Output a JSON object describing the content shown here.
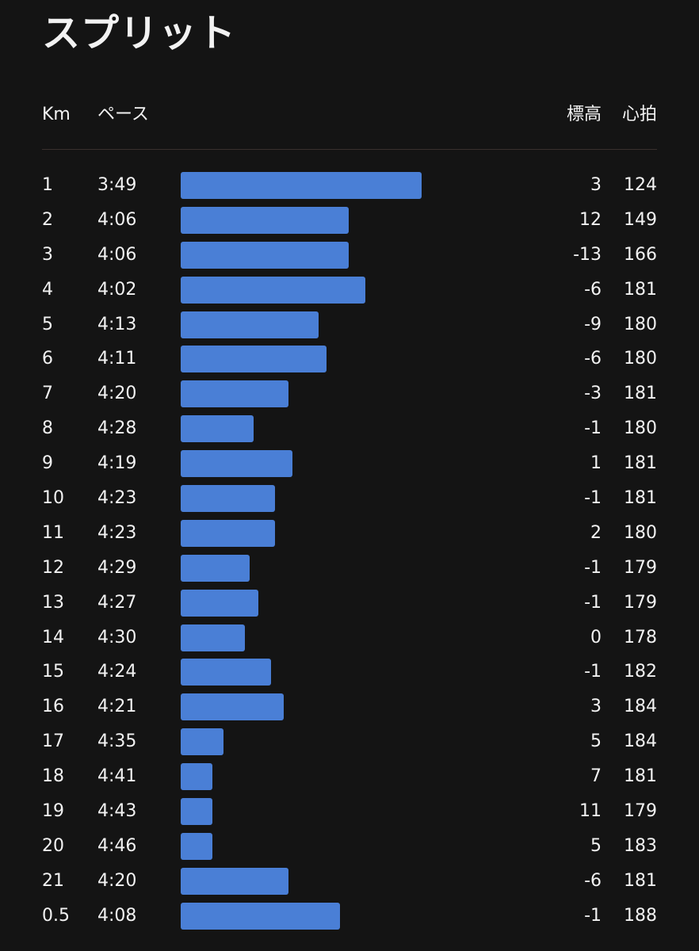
{
  "title": "スプリット",
  "columns": {
    "km": "Km",
    "pace": "ペース",
    "elevation": "標高",
    "heart_rate": "心拍"
  },
  "colors": {
    "background": "#141414",
    "bar": "#4a7fd6",
    "text": "#f2f2f2"
  },
  "splits": [
    {
      "km": "1",
      "pace": "3:49",
      "elevation": "3",
      "heart_rate": "124"
    },
    {
      "km": "2",
      "pace": "4:06",
      "elevation": "12",
      "heart_rate": "149"
    },
    {
      "km": "3",
      "pace": "4:06",
      "elevation": "-13",
      "heart_rate": "166"
    },
    {
      "km": "4",
      "pace": "4:02",
      "elevation": "-6",
      "heart_rate": "181"
    },
    {
      "km": "5",
      "pace": "4:13",
      "elevation": "-9",
      "heart_rate": "180"
    },
    {
      "km": "6",
      "pace": "4:11",
      "elevation": "-6",
      "heart_rate": "180"
    },
    {
      "km": "7",
      "pace": "4:20",
      "elevation": "-3",
      "heart_rate": "181"
    },
    {
      "km": "8",
      "pace": "4:28",
      "elevation": "-1",
      "heart_rate": "180"
    },
    {
      "km": "9",
      "pace": "4:19",
      "elevation": "1",
      "heart_rate": "181"
    },
    {
      "km": "10",
      "pace": "4:23",
      "elevation": "-1",
      "heart_rate": "181"
    },
    {
      "km": "11",
      "pace": "4:23",
      "elevation": "2",
      "heart_rate": "180"
    },
    {
      "km": "12",
      "pace": "4:29",
      "elevation": "-1",
      "heart_rate": "179"
    },
    {
      "km": "13",
      "pace": "4:27",
      "elevation": "-1",
      "heart_rate": "179"
    },
    {
      "km": "14",
      "pace": "4:30",
      "elevation": "0",
      "heart_rate": "178"
    },
    {
      "km": "15",
      "pace": "4:24",
      "elevation": "-1",
      "heart_rate": "182"
    },
    {
      "km": "16",
      "pace": "4:21",
      "elevation": "3",
      "heart_rate": "184"
    },
    {
      "km": "17",
      "pace": "4:35",
      "elevation": "5",
      "heart_rate": "184"
    },
    {
      "km": "18",
      "pace": "4:41",
      "elevation": "7",
      "heart_rate": "181"
    },
    {
      "km": "19",
      "pace": "4:43",
      "elevation": "11",
      "heart_rate": "179"
    },
    {
      "km": "20",
      "pace": "4:46",
      "elevation": "5",
      "heart_rate": "183"
    },
    {
      "km": "21",
      "pace": "4:20",
      "elevation": "-6",
      "heart_rate": "181"
    },
    {
      "km": "0.5",
      "pace": "4:08",
      "elevation": "-1",
      "heart_rate": "188"
    }
  ]
}
